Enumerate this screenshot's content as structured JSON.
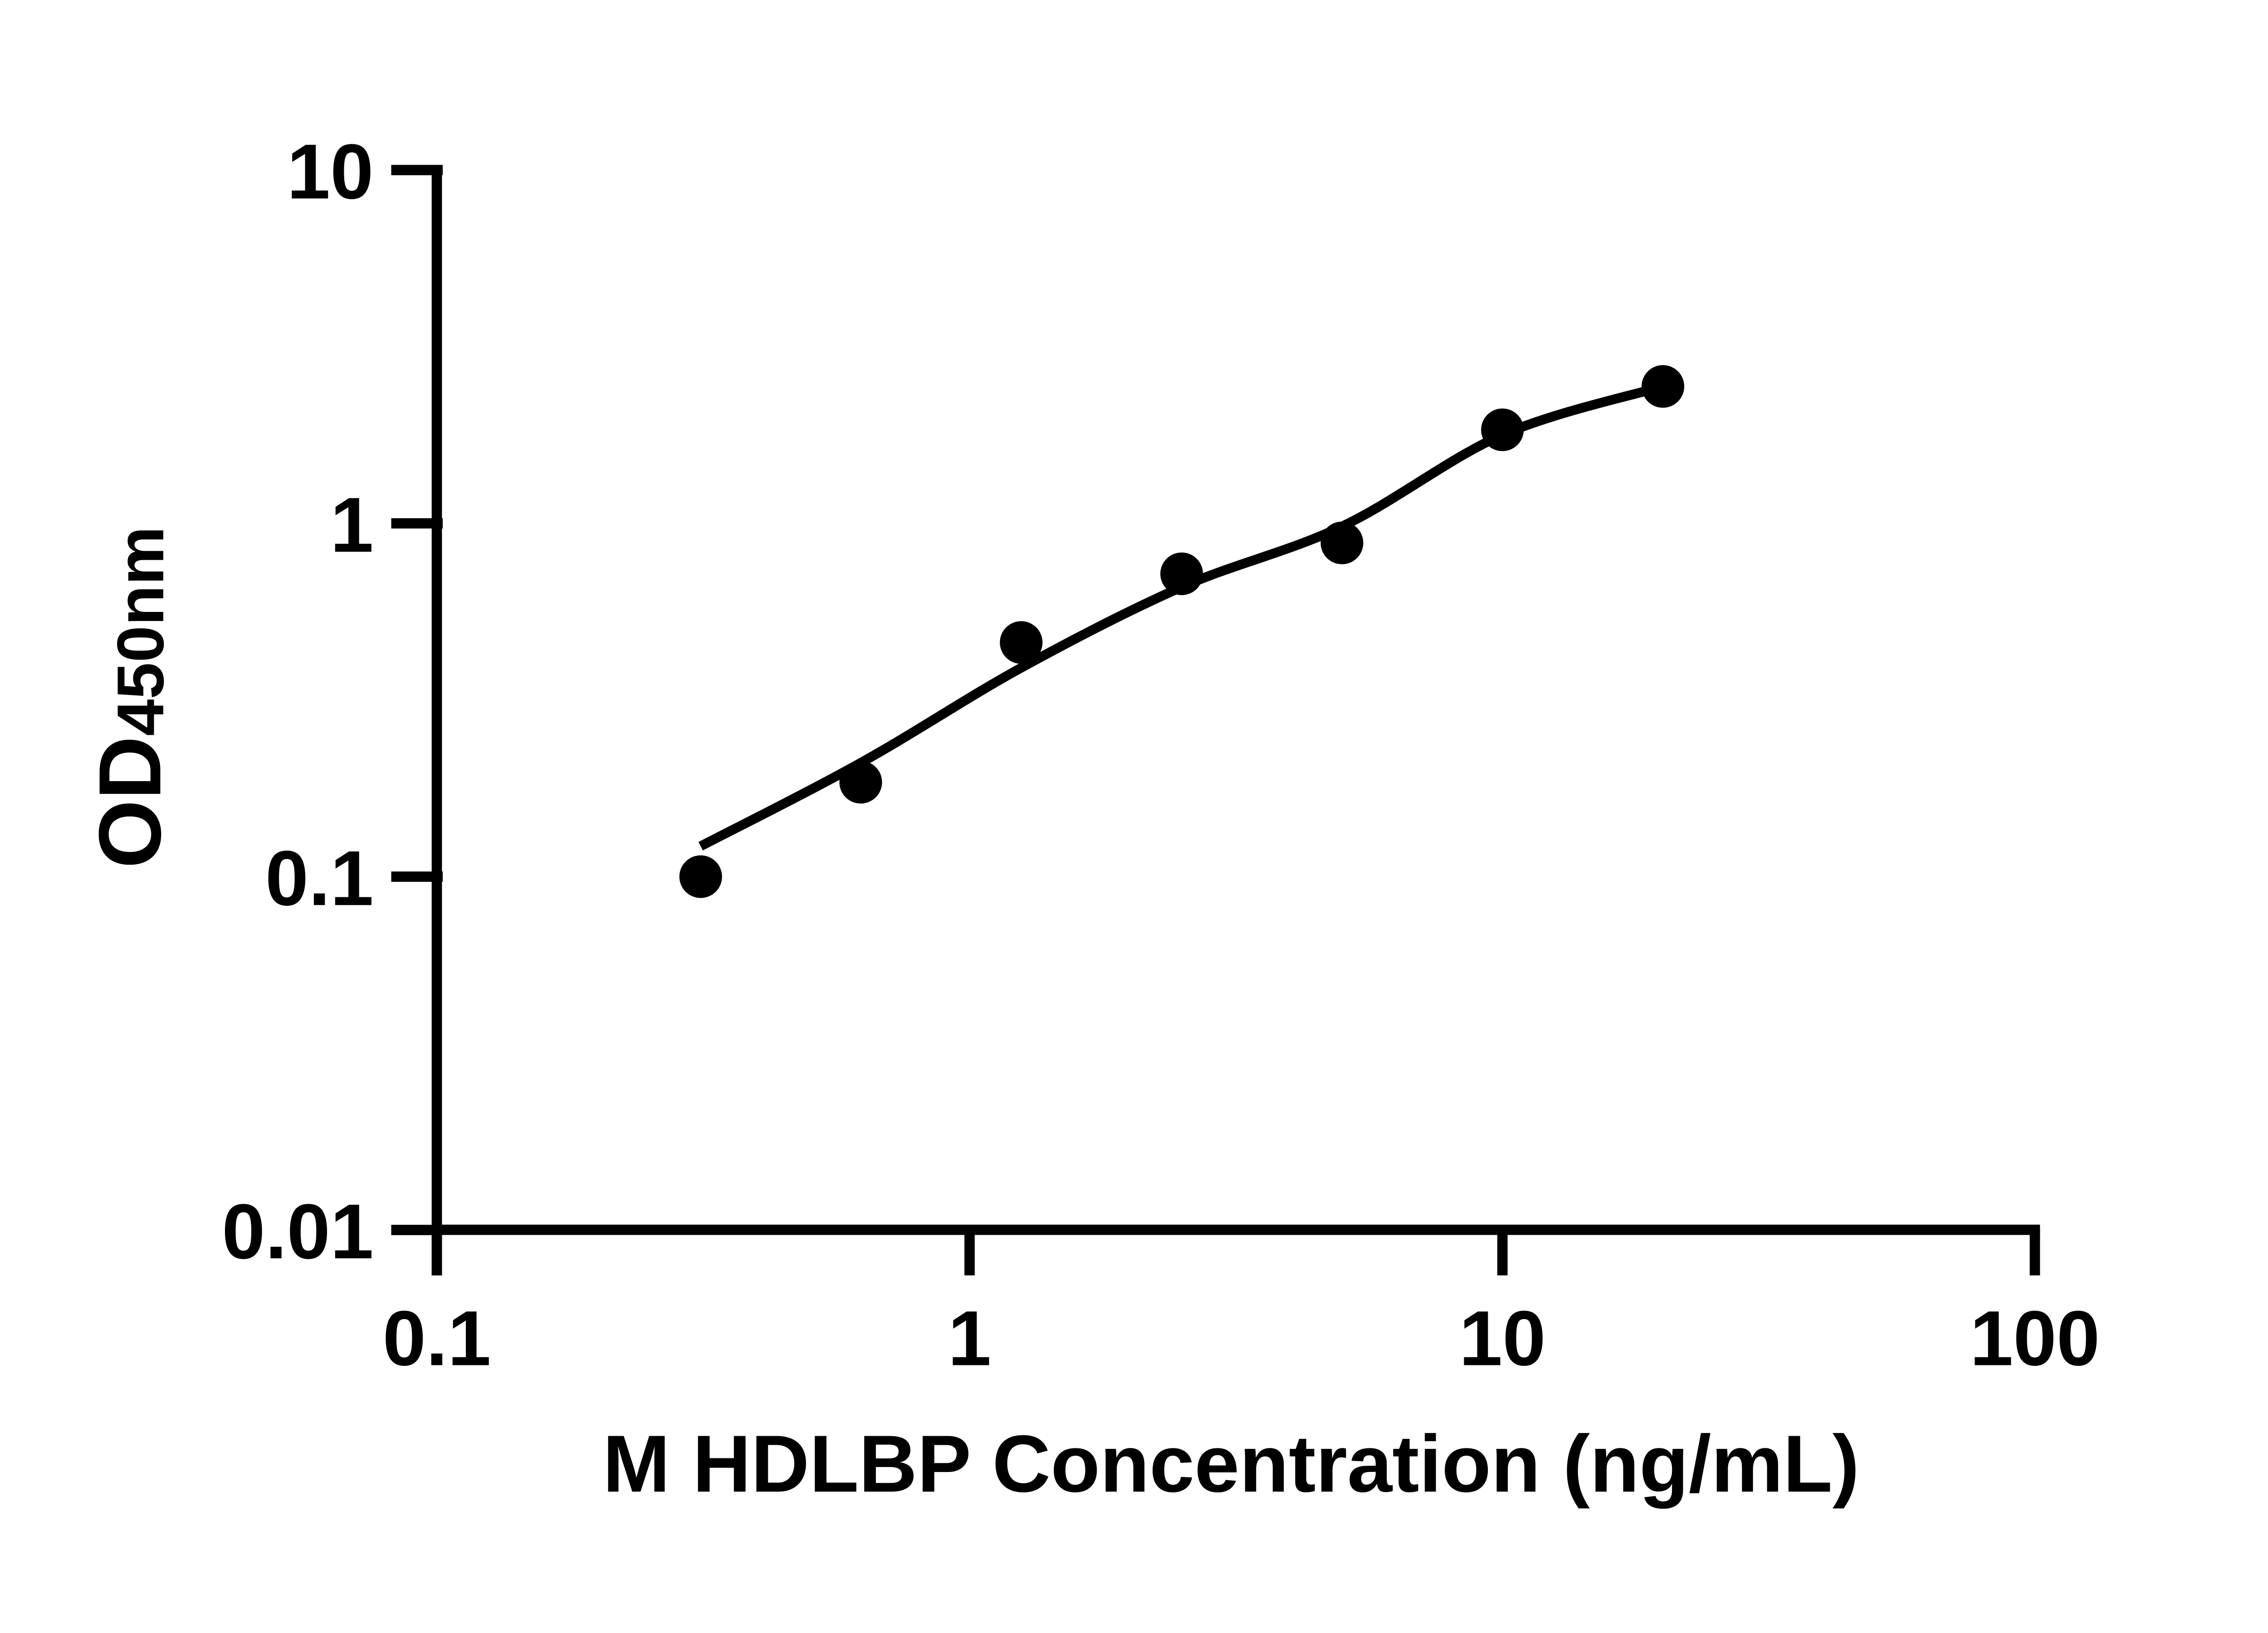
{
  "figure": {
    "background_color": "#ffffff",
    "ink_color": "#000000"
  },
  "chart_data": {
    "type": "scatter",
    "title": "",
    "xlabel": "M HDLBP Concentration (ng/mL)",
    "ylabel_main": "OD",
    "ylabel_sub": "450nm",
    "x_scale": "log",
    "y_scale": "log",
    "xlim": [
      0.1,
      100
    ],
    "ylim": [
      0.01,
      10
    ],
    "grid": "off",
    "legend": "none",
    "x_ticks": [
      "0.1",
      "1",
      "10",
      "100"
    ],
    "y_ticks": [
      "10",
      "1",
      "0.1",
      "0.01"
    ],
    "series": [
      {
        "name": "standard-points",
        "marker": "circle",
        "marker_color": "#000000",
        "marker_radius_px": 14.5,
        "x": [
          0.313,
          0.625,
          1.25,
          2.5,
          5,
          10,
          20
        ],
        "y": [
          0.1,
          0.185,
          0.46,
          0.72,
          0.88,
          1.84,
          2.44
        ]
      }
    ],
    "fit_curve": {
      "name": "fitted-standard-curve",
      "color": "#000000",
      "x": [
        0.313,
        0.625,
        1.25,
        2.5,
        5,
        10,
        20
      ],
      "y": [
        0.122,
        0.21,
        0.39,
        0.66,
        0.98,
        1.78,
        2.44
      ]
    }
  }
}
